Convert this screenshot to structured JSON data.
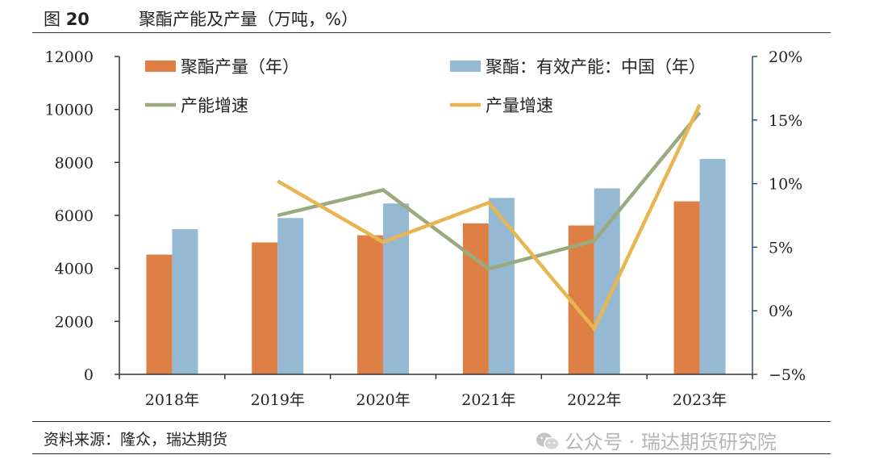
{
  "figure": {
    "label": "图",
    "number": "20",
    "title": "聚酯产能及产量（万吨，%）"
  },
  "source": "资料来源：隆众，瑞达期货",
  "watermark": "公众号 · 瑞达期货研究院",
  "colors": {
    "production": "#DE8046",
    "capacity": "#95B8D3",
    "capacity_growth": "#9BAA7E",
    "production_growth": "#E8B552",
    "axis": "#333333",
    "right_axis": "#2F4F6F"
  },
  "chart_data": {
    "type": "bar",
    "categories": [
      "2018年",
      "2019年",
      "2020年",
      "2021年",
      "2022年",
      "2023年"
    ],
    "series": [
      {
        "name": "聚酯产量（年）",
        "kind": "bar",
        "axis": "left",
        "color_key": "production",
        "values": [
          4520,
          4980,
          5250,
          5700,
          5620,
          6530
        ]
      },
      {
        "name": "聚酯：有效产能：中国（年）",
        "kind": "bar",
        "axis": "left",
        "color_key": "capacity",
        "values": [
          5480,
          5900,
          6450,
          6660,
          7020,
          8130
        ]
      },
      {
        "name": "产能增速",
        "kind": "line",
        "axis": "right",
        "color_key": "capacity_growth",
        "values": [
          null,
          7.5,
          9.5,
          3.3,
          5.5,
          15.6
        ]
      },
      {
        "name": "产量增速",
        "kind": "line",
        "axis": "right",
        "color_key": "production_growth",
        "values": [
          null,
          10.2,
          5.4,
          8.5,
          -1.4,
          16.2
        ]
      }
    ],
    "y_left": {
      "min": 0,
      "max": 12000,
      "step": 2000,
      "ticks": [
        "0",
        "2000",
        "4000",
        "6000",
        "8000",
        "10000",
        "12000"
      ]
    },
    "y_right": {
      "min": -5,
      "max": 20,
      "step": 5,
      "ticks": [
        "−5%",
        "0%",
        "5%",
        "10%",
        "15%",
        "20%"
      ]
    },
    "legend_position": "top",
    "grid": false
  }
}
